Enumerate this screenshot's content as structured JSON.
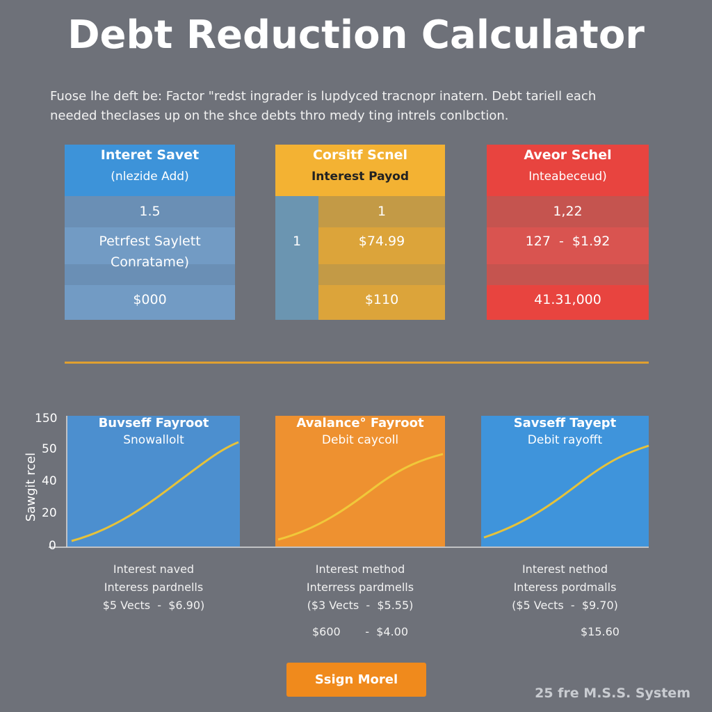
{
  "header": {
    "title": "Debt Reduction Calculator",
    "description": [
      "Fuose lhe deft be: Factor \"redst ingrader is lupdyced tracnopr inatern. Debt tariell each",
      "needed theclases up on the shce debts thro medy ting intrels conlbction."
    ]
  },
  "cards": [
    {
      "title": "Interet Savet",
      "subtitle": "(nlezide Add)",
      "rows": [
        "1.5",
        "Petrfest Saylett",
        "Conratame)",
        "$000"
      ]
    },
    {
      "title": "Corsitf Scnel",
      "subtitle": "Interest Payod",
      "rows": [
        "1",
        "1",
        "$74.99",
        "$110"
      ]
    },
    {
      "title": "Aveor Schel",
      "subtitle": "Inteabeceud)",
      "rows": [
        "1,22",
        "127  -  $1.92",
        "41.31,000"
      ]
    }
  ],
  "charts": {
    "y_axis_label": "Sawgit rcel",
    "yticks": [
      "150",
      "50",
      "40",
      "20",
      "0"
    ],
    "panels": [
      {
        "title": "Buvseff Fayroot",
        "subtitle": "Snowallolt",
        "notes": [
          "Interest naved",
          "Interess pardnells",
          "$5 Vects  -  $6.90)"
        ]
      },
      {
        "title": "Avalance° Fayroot",
        "subtitle": "Debit caycoll",
        "notes": [
          "Interest method",
          "Interress pardmells",
          "($3 Vects  -  $5.55)",
          "$600       -  $4.00"
        ]
      },
      {
        "title": "Savseff Tayept",
        "subtitle": "Debit rayofft",
        "notes": [
          "Interest nethod",
          "Interess pordmalls",
          "($5 Vects  -  $9.70)",
          "$15.60"
        ]
      }
    ]
  },
  "button": "Ssign Morel",
  "footer": "25 fre M.S.S. System"
}
